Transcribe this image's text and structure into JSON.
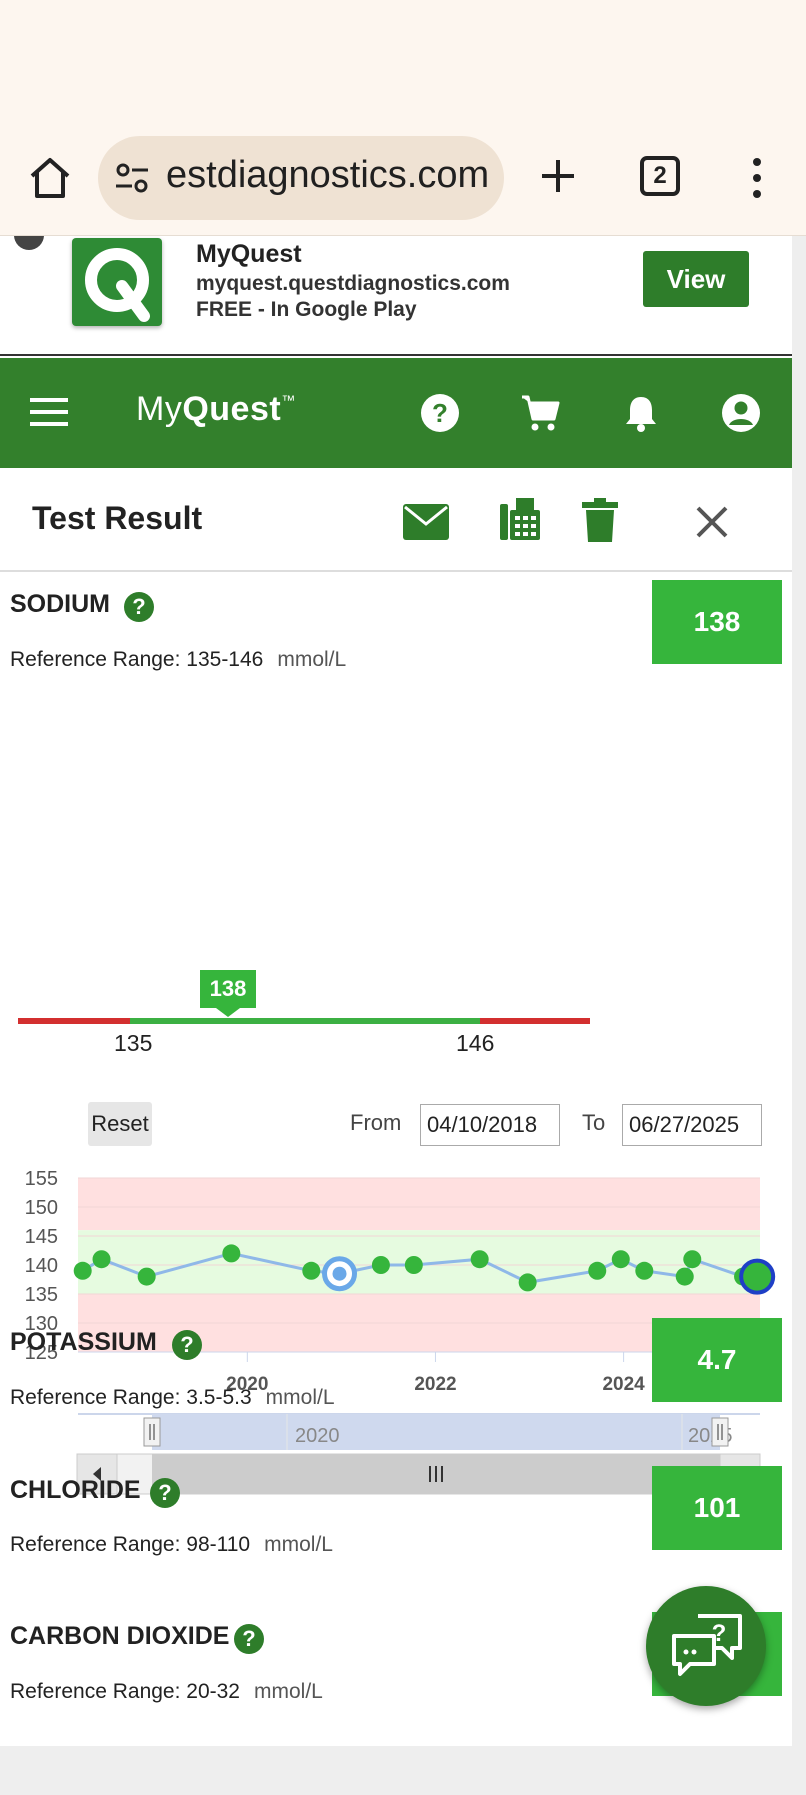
{
  "browser": {
    "url": "estdiagnostics.com",
    "tab_count": "2"
  },
  "app_banner": {
    "name": "MyQuest",
    "url": "myquest.questdiagnostics.com",
    "price": "FREE - In Google Play",
    "view_label": "View"
  },
  "nav": {
    "logo_my": "My",
    "logo_quest": "Quest",
    "logo_tm": "™",
    "icons": [
      "help-icon",
      "cart-icon",
      "bell-icon",
      "account-icon"
    ]
  },
  "header": {
    "title": "Test Result",
    "tools": [
      "mail-icon",
      "fax-icon",
      "trash-icon",
      "close-icon"
    ]
  },
  "sodium": {
    "name": "SODIUM",
    "help": "?",
    "ref_label": "Reference Range: 135-146",
    "unit": "mmol/L",
    "value": "138",
    "range_low": "135",
    "range_high": "146",
    "marker": "138"
  },
  "history": {
    "reset_label": "Reset",
    "from_label": "From",
    "from_value": "04/10/2018",
    "to_label": "To",
    "to_value": "06/27/2025"
  },
  "chart_data": {
    "type": "line",
    "y_ticks": [
      "155",
      "150",
      "145",
      "140",
      "135",
      "130",
      "125"
    ],
    "x_ticks": [
      "2020",
      "2022",
      "2024"
    ],
    "navigator_ticks": [
      "2020",
      "2025"
    ],
    "reference_band": [
      135,
      146
    ],
    "points": [
      {
        "x": "2018.25",
        "y": 139
      },
      {
        "x": "2018.45",
        "y": 141
      },
      {
        "x": "2018.93",
        "y": 138
      },
      {
        "x": "2019.83",
        "y": 142
      },
      {
        "x": "2020.68",
        "y": 139
      },
      {
        "x": "2020.98",
        "y": 138.5
      },
      {
        "x": "2021.42",
        "y": 140
      },
      {
        "x": "2021.77",
        "y": 140
      },
      {
        "x": "2022.47",
        "y": 141
      },
      {
        "x": "2022.98",
        "y": 137
      },
      {
        "x": "2023.72",
        "y": 139
      },
      {
        "x": "2023.97",
        "y": 141
      },
      {
        "x": "2024.22",
        "y": 139
      },
      {
        "x": "2024.65",
        "y": 138
      },
      {
        "x": "2024.73",
        "y": 141
      },
      {
        "x": "2025.27",
        "y": 138
      },
      {
        "x": "2025.42",
        "y": 138
      }
    ],
    "colors": {
      "line": "#8fb8e8",
      "point": "#36b53c",
      "band_ok": "#e6fbe0",
      "band_bad": "#ffe0e0"
    }
  },
  "tests": [
    {
      "name": "POTASSIUM",
      "ref_label": "Reference Range: 3.5-5.3",
      "unit": "mmol/L",
      "value": "4.7"
    },
    {
      "name": "CHLORIDE",
      "ref_label": "Reference Range: 98-110",
      "unit": "mmol/L",
      "value": "101"
    },
    {
      "name": "CARBON DIOXIDE",
      "ref_label": "Reference Range: 20-32",
      "unit": "mmol/L",
      "value": ""
    }
  ],
  "chat": {
    "icon": "chat-help-icon",
    "glyph": "?"
  }
}
